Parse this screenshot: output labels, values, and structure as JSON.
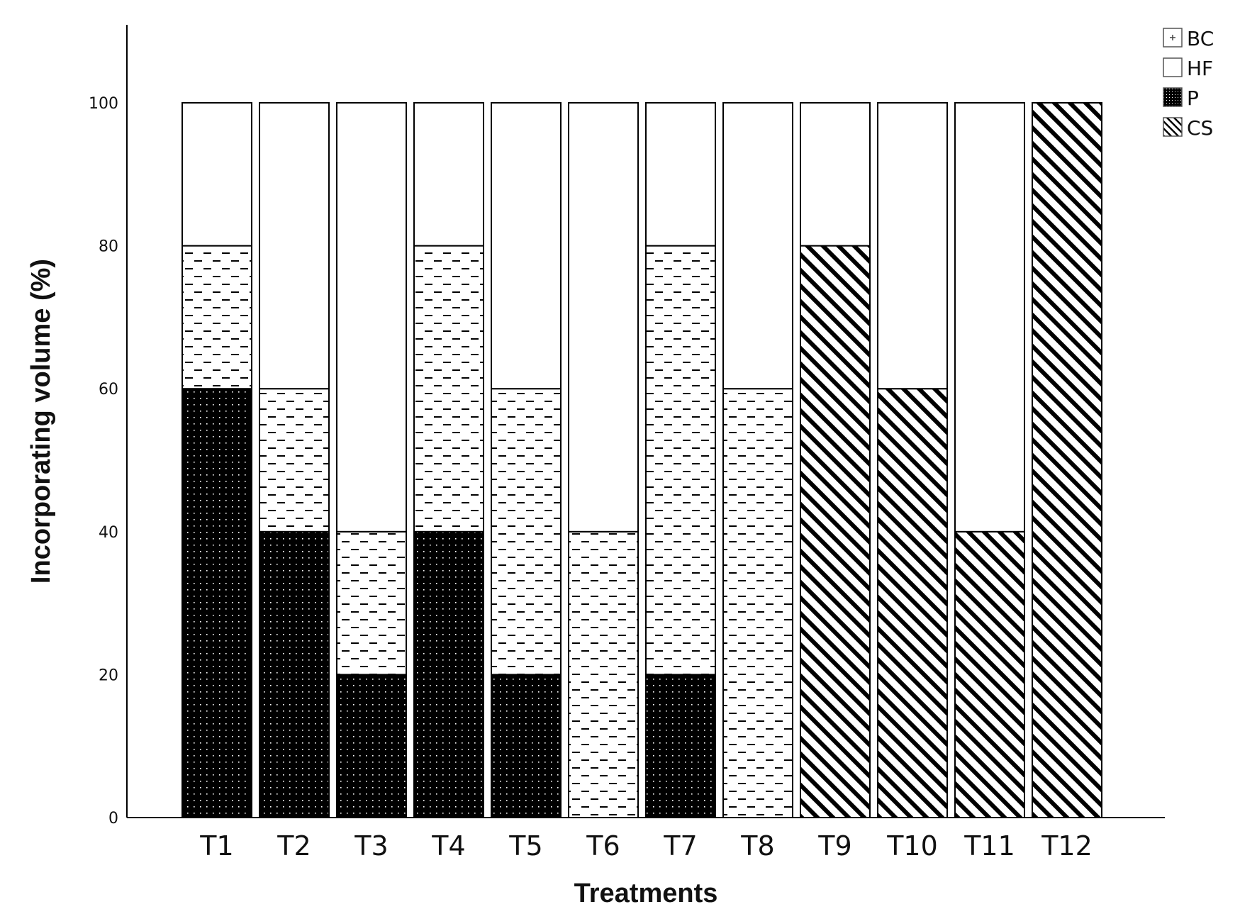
{
  "chart_data": {
    "type": "bar",
    "stacked": true,
    "categories": [
      "T1",
      "T2",
      "T3",
      "T4",
      "T5",
      "T6",
      "T7",
      "T8",
      "T9",
      "T10",
      "T11",
      "T12"
    ],
    "series": [
      {
        "name": "P",
        "pattern": "dots",
        "values": [
          60,
          40,
          20,
          40,
          20,
          0,
          20,
          0,
          0,
          0,
          0,
          0
        ]
      },
      {
        "name": "CS",
        "pattern": "diagonal",
        "values": [
          0,
          0,
          0,
          0,
          0,
          0,
          0,
          0,
          80,
          60,
          40,
          100
        ]
      },
      {
        "name": "HF",
        "pattern": "dashes",
        "values": [
          20,
          20,
          20,
          40,
          40,
          40,
          60,
          60,
          0,
          0,
          0,
          0
        ]
      },
      {
        "name": "BC",
        "pattern": "none",
        "values": [
          20,
          40,
          60,
          20,
          40,
          60,
          20,
          40,
          20,
          40,
          60,
          0
        ]
      }
    ],
    "legend_order": [
      "BC",
      "HF",
      "P",
      "CS"
    ],
    "legend_position": "top-right",
    "xlabel": "Treatments",
    "ylabel": "Incorporating volume (%)",
    "ylim": [
      0,
      110
    ],
    "yticks": [
      0,
      20,
      40,
      60,
      80,
      100
    ],
    "grid": false
  }
}
